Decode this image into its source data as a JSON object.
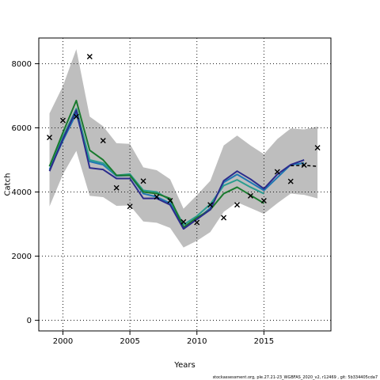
{
  "chart_data": {
    "type": "line",
    "title": "",
    "xlabel": "Years",
    "ylabel": "Catch",
    "xlim": [
      1998.2,
      2020.0
    ],
    "ylim": [
      -330,
      8800
    ],
    "xticks": [
      2000,
      2005,
      2010,
      2015
    ],
    "yticks": [
      0,
      2000,
      4000,
      6000,
      8000
    ],
    "grid": true,
    "band": {
      "x": [
        1999,
        2000,
        2001,
        2002,
        2003,
        2004,
        2005,
        2006,
        2007,
        2008,
        2009,
        2010,
        2011,
        2012,
        2013,
        2014,
        2015,
        2016,
        2017,
        2018,
        2019
      ],
      "upper": [
        6450,
        7300,
        8450,
        6350,
        6050,
        5520,
        5500,
        4770,
        4680,
        4400,
        3480,
        3900,
        4350,
        5450,
        5760,
        5450,
        5180,
        5650,
        5980,
        5950,
        6040
      ],
      "lower": [
        3550,
        4550,
        5280,
        3880,
        3840,
        3570,
        3580,
        3080,
        3040,
        2880,
        2270,
        2480,
        2750,
        3380,
        3680,
        3500,
        3320,
        3650,
        3950,
        3910,
        3800
      ]
    },
    "series": [
      {
        "color": "#1f78b4",
        "dash": false,
        "x": [
          1999,
          2000,
          2001,
          2002,
          2003,
          2004,
          2005,
          2006,
          2007,
          2008,
          2009,
          2010,
          2011,
          2012,
          2013,
          2014,
          2015,
          2016,
          2017,
          2018
        ],
        "values": [
          4700,
          5600,
          6450,
          4950,
          4850,
          4500,
          4520,
          3950,
          3850,
          3650,
          2900,
          3150,
          3500,
          4300,
          4550,
          4300,
          4050,
          4450,
          4850,
          4900
        ]
      },
      {
        "color": "#2a9d8f",
        "dash": false,
        "x": [
          1999,
          2000,
          2001,
          2002,
          2003,
          2004,
          2005,
          2006,
          2007,
          2008,
          2009,
          2010,
          2011,
          2012,
          2013,
          2014,
          2015
        ],
        "values": [
          4800,
          5720,
          6600,
          5000,
          4900,
          4520,
          4560,
          4050,
          4000,
          3750,
          2980,
          3250,
          3620,
          4200,
          4380,
          4150,
          3950
        ]
      },
      {
        "color": "#1a7a2e",
        "dash": false,
        "x": [
          1999,
          2000,
          2001,
          2002,
          2003,
          2004,
          2005,
          2006,
          2007,
          2008,
          2009,
          2010,
          2011,
          2012,
          2013,
          2014,
          2015
        ],
        "values": [
          4800,
          5850,
          6850,
          5300,
          5000,
          4520,
          4520,
          4000,
          3950,
          3800,
          2900,
          3200,
          3450,
          3950,
          4150,
          3900,
          3650
        ]
      },
      {
        "color": "#2b2b8c",
        "dash": false,
        "x": [
          1999,
          2000,
          2001,
          2002,
          2003,
          2004,
          2005,
          2006,
          2007,
          2008,
          2009,
          2010,
          2011,
          2012,
          2013,
          2014,
          2015,
          2016,
          2017,
          2018
        ],
        "values": [
          4650,
          5650,
          6550,
          4750,
          4700,
          4420,
          4420,
          3800,
          3800,
          3600,
          2850,
          3150,
          3450,
          4350,
          4650,
          4400,
          4100,
          4550,
          4850,
          5000
        ]
      },
      {
        "color": "#000000",
        "dash": true,
        "x": [
          2017,
          2018,
          2019
        ],
        "values": [
          4820,
          4830,
          4800
        ]
      }
    ],
    "observations": {
      "x": [
        1999,
        2000,
        2001,
        2002,
        2003,
        2004,
        2005,
        2006,
        2007,
        2008,
        2009,
        2010,
        2011,
        2012,
        2013,
        2014,
        2015,
        2016,
        2017,
        2018,
        2019
      ],
      "values": [
        5700,
        6230,
        6350,
        8220,
        5600,
        4130,
        3550,
        4340,
        3850,
        3730,
        3070,
        3050,
        3600,
        3200,
        3600,
        3880,
        3730,
        4630,
        4330,
        4840,
        5380
      ]
    }
  },
  "footer": {
    "source_note": "stockassessment.org, ple.27.21-23_WGBFAS_2020_v2, r12469 , git: 5b334405cda7"
  }
}
